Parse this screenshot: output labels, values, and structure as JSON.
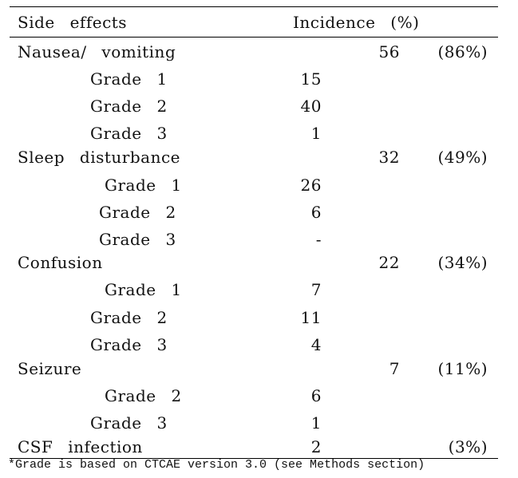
{
  "table": {
    "header": [
      "Side effects",
      "Incidence (%)"
    ],
    "rows": [
      {
        "label": "Nausea/ vomiting",
        "total": "56",
        "percent": "(86%)"
      },
      {
        "label": "Grade 1",
        "count": "15"
      },
      {
        "label": "Grade 2",
        "count": "40"
      },
      {
        "label": "Grade 3",
        "count": "1"
      },
      {
        "label": "Sleep disturbance",
        "total": "32",
        "percent": "(49%)"
      },
      {
        "label": "Grade 1",
        "count": "26"
      },
      {
        "label": "Grade 2",
        "count": "6"
      },
      {
        "label": "Grade 3",
        "count": "-"
      },
      {
        "label": "Confusion",
        "total": "22",
        "percent": "(34%)"
      },
      {
        "label": "Grade 1",
        "count": "7"
      },
      {
        "label": "Grade 2",
        "count": "11"
      },
      {
        "label": "Grade 3",
        "count": "4"
      },
      {
        "label": "Seizure",
        "total": "7",
        "percent": "(11%)"
      },
      {
        "label": "Grade 2",
        "count": "6"
      },
      {
        "label": "Grade 3",
        "count": "1"
      },
      {
        "label": "CSF infection",
        "count": "2",
        "percent": "(3%)"
      }
    ],
    "footnote": "*Grade is based on CTCAE version 3.0 (see Methods section)"
  }
}
